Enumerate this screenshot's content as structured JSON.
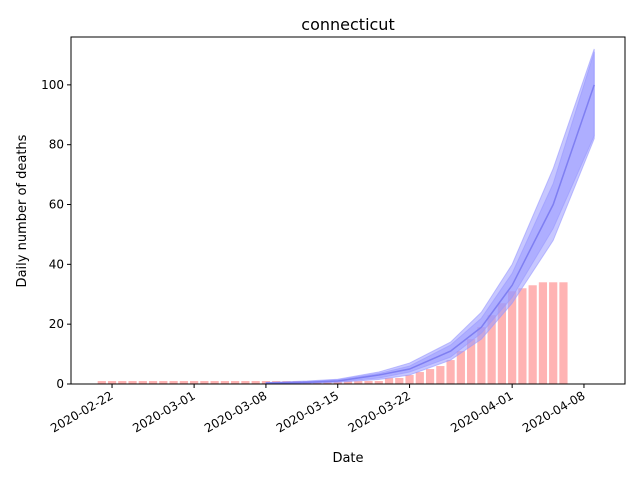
{
  "chart_data": {
    "type": "bar",
    "title": "connecticut",
    "xlabel": "Date",
    "ylabel": "Daily number of deaths",
    "x_start": "2020-02-21",
    "x_ticks": [
      "2020-02-22",
      "2020-03-01",
      "2020-03-08",
      "2020-03-15",
      "2020-03-22",
      "2020-04-01",
      "2020-04-08"
    ],
    "y_ticks": [
      0,
      20,
      40,
      60,
      80,
      100
    ],
    "xlim": [
      "2020-02-18",
      "2020-04-12"
    ],
    "ylim": [
      0,
      116
    ],
    "grid": false,
    "bar_color": "#ffb3b3",
    "band_color": "#9999ff",
    "line_color": "#7f7ff2",
    "bars": {
      "dates": [
        "2020-02-21",
        "2020-02-22",
        "2020-02-23",
        "2020-02-24",
        "2020-02-25",
        "2020-02-26",
        "2020-02-27",
        "2020-02-28",
        "2020-02-29",
        "2020-03-01",
        "2020-03-02",
        "2020-03-03",
        "2020-03-04",
        "2020-03-05",
        "2020-03-06",
        "2020-03-07",
        "2020-03-08",
        "2020-03-09",
        "2020-03-10",
        "2020-03-11",
        "2020-03-12",
        "2020-03-13",
        "2020-03-14",
        "2020-03-15",
        "2020-03-16",
        "2020-03-17",
        "2020-03-18",
        "2020-03-19",
        "2020-03-20",
        "2020-03-21",
        "2020-03-22",
        "2020-03-23",
        "2020-03-24",
        "2020-03-25",
        "2020-03-26",
        "2020-03-27",
        "2020-03-28",
        "2020-03-29",
        "2020-03-30",
        "2020-03-31",
        "2020-04-01",
        "2020-04-02",
        "2020-04-03",
        "2020-04-04",
        "2020-04-05",
        "2020-04-06"
      ],
      "values": [
        1,
        1,
        1,
        1,
        1,
        1,
        1,
        1,
        1,
        1,
        1,
        1,
        1,
        1,
        1,
        1,
        1,
        1,
        1,
        1,
        1,
        1,
        1,
        1,
        1,
        1,
        1,
        1,
        2,
        2,
        3,
        4,
        5,
        6,
        8,
        11,
        15,
        19,
        23,
        27,
        31,
        32,
        33,
        34,
        34,
        34
      ]
    },
    "series": [
      {
        "dates": [
          "2020-03-08",
          "2020-03-12",
          "2020-03-15",
          "2020-03-19",
          "2020-03-22",
          "2020-03-26",
          "2020-03-29",
          "2020-04-01",
          "2020-04-05",
          "2020-04-09"
        ],
        "mean": [
          0.3,
          0.6,
          1,
          3,
          5,
          11,
          19,
          33,
          60,
          100
        ],
        "lower": [
          0.2,
          0.4,
          0.8,
          2,
          4,
          9,
          17,
          29,
          52,
          83
        ],
        "upper": [
          0.4,
          0.8,
          1.4,
          3.5,
          6,
          13,
          22,
          37,
          67,
          111
        ],
        "outer_lower": [
          0.1,
          0.3,
          0.6,
          1.5,
          3,
          8,
          15,
          27,
          48,
          82
        ],
        "outer_upper": [
          0.5,
          1,
          1.6,
          4,
          7,
          14,
          24,
          40,
          72,
          112
        ]
      }
    ]
  }
}
